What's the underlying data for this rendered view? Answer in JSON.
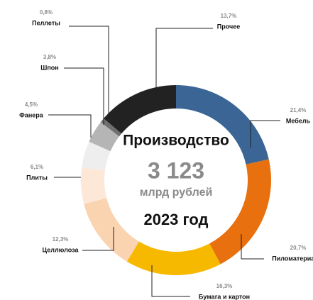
{
  "chart_data": {
    "type": "pie",
    "categories": [
      "Мебель",
      "Пиломатериалы",
      "Бумага и картон",
      "Целлюлоза",
      "Плиты",
      "Фанера",
      "Шпон",
      "Пеллеты",
      "Прочее"
    ],
    "values": [
      21.4,
      20.7,
      16.3,
      12.3,
      6.1,
      4.5,
      3.8,
      0.8,
      13.7
    ],
    "value_labels": [
      "21,4%",
      "20,7%",
      "16,3%",
      "12,3%",
      "6,1%",
      "4,5%",
      "3,8%",
      "0,8%",
      "13,7%"
    ],
    "colors": [
      "#3a6595",
      "#e8700f",
      "#f7b900",
      "#fad3b1",
      "#fde7d7",
      "#eeeeee",
      "#b5b5b5",
      "#6f6f6f",
      "#222222"
    ],
    "center_title": "Производство",
    "center_value": "3 123",
    "center_unit": "млрд рублей",
    "center_year": "2023 год"
  }
}
